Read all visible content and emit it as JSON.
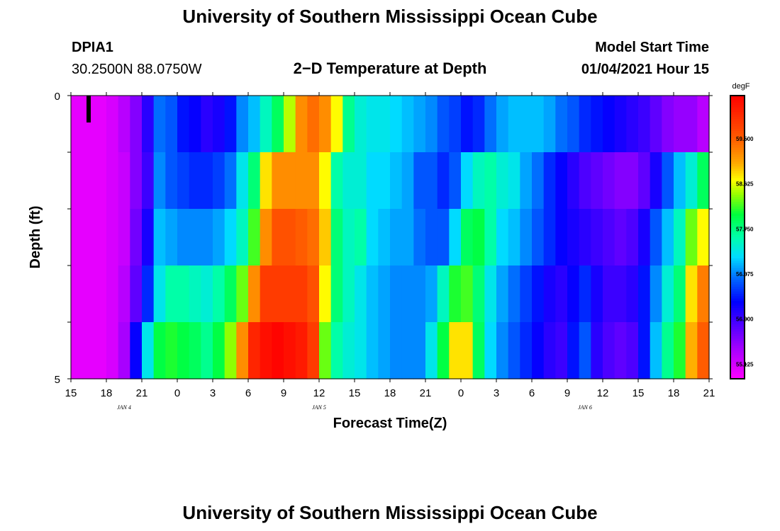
{
  "header": {
    "title": "University of Southern Mississippi Ocean Cube",
    "station_id": "DPIA1",
    "coordinates": "30.2500N 88.0750W",
    "plot_title": "2−D Temperature at Depth",
    "model_label": "Model Start Time",
    "model_time": "01/04/2021 Hour 15"
  },
  "footer": {
    "title": "University of Southern Mississippi Ocean Cube"
  },
  "chart_data": {
    "type": "heatmap",
    "title": "2−D Temperature at Depth",
    "xlabel": "Forecast Time(Z)",
    "ylabel": "Depth (ft)",
    "xlim_hours": [
      0,
      54
    ],
    "ylim": [
      0,
      5
    ],
    "y_ticks": [
      "0",
      "5"
    ],
    "x_ticks": [
      "15",
      "18",
      "21",
      "0",
      "3",
      "6",
      "9",
      "12",
      "15",
      "18",
      "21",
      "0",
      "3",
      "6",
      "9",
      "12",
      "15",
      "18",
      "21"
    ],
    "day_labels": [
      {
        "label": "JAN 4",
        "hour": 4.5
      },
      {
        "label": "JAN 5",
        "hour": 21
      },
      {
        "label": "JAN 6",
        "hour": 43.5
      }
    ],
    "colorbar": {
      "unit": "degF",
      "min": 54.84,
      "max": 60.34,
      "labels": [
        "59.500",
        "58.625",
        "57.750",
        "56.875",
        "56.000",
        "55.125"
      ],
      "label_values": [
        59.5,
        58.625,
        57.75,
        56.875,
        56.0,
        55.125
      ]
    },
    "marker_hour": 1.5,
    "depth_layers": 5,
    "columns_per_layer": 54,
    "temperature_degF": [
      [
        55.0,
        55.0,
        55.0,
        55.1,
        55.3,
        55.6,
        56.1,
        56.8,
        56.7,
        56.4,
        56.3,
        56.1,
        56.2,
        56.4,
        56.9,
        57.1,
        57.5,
        57.9,
        58.5,
        59.2,
        59.4,
        59.2,
        58.7,
        57.7,
        57.4,
        57.3,
        57.3,
        57.2,
        57.1,
        57.0,
        56.9,
        56.7,
        56.6,
        56.4,
        56.5,
        56.8,
        57.0,
        57.1,
        57.1,
        57.1,
        57.0,
        56.8,
        56.7,
        56.5,
        56.4,
        56.3,
        56.2,
        56.1,
        56.0,
        55.8,
        55.6,
        55.5,
        55.5,
        55.3
      ],
      [
        55.0,
        55.0,
        55.0,
        55.1,
        55.2,
        55.6,
        56.0,
        56.9,
        56.7,
        56.6,
        56.5,
        56.5,
        56.6,
        56.8,
        57.3,
        57.8,
        58.8,
        59.2,
        59.2,
        59.2,
        59.2,
        58.7,
        57.6,
        57.4,
        57.4,
        57.2,
        57.2,
        57.1,
        57.0,
        56.7,
        56.7,
        56.5,
        56.7,
        57.2,
        57.5,
        57.6,
        57.4,
        57.3,
        57.0,
        56.8,
        56.5,
        56.3,
        56.1,
        55.9,
        55.8,
        55.7,
        55.6,
        55.6,
        55.8,
        56.2,
        56.7,
        57.1,
        57.4,
        57.9
      ],
      [
        55.0,
        55.0,
        55.0,
        55.1,
        55.2,
        55.7,
        56.2,
        57.1,
        57.0,
        56.9,
        56.9,
        56.9,
        57.0,
        57.2,
        57.5,
        58.2,
        59.2,
        59.6,
        59.6,
        59.5,
        59.4,
        58.9,
        57.8,
        57.5,
        57.6,
        57.2,
        57.1,
        57.0,
        57.0,
        56.8,
        56.7,
        56.7,
        57.2,
        57.9,
        58.0,
        57.6,
        57.2,
        57.1,
        56.9,
        56.7,
        56.5,
        56.3,
        56.2,
        56.1,
        56.0,
        55.9,
        55.8,
        55.9,
        56.2,
        56.7,
        57.1,
        57.5,
        58.3,
        58.7
      ],
      [
        55.0,
        55.0,
        55.0,
        55.1,
        55.3,
        55.8,
        56.5,
        57.3,
        57.6,
        57.6,
        57.5,
        57.4,
        57.6,
        57.9,
        58.3,
        59.2,
        59.8,
        59.8,
        59.8,
        59.8,
        59.6,
        58.7,
        57.8,
        57.5,
        57.3,
        57.1,
        57.0,
        56.9,
        56.9,
        56.9,
        57.0,
        57.5,
        58.1,
        58.2,
        57.8,
        57.3,
        57.0,
        56.8,
        56.6,
        56.4,
        56.2,
        56.1,
        56.3,
        56.5,
        56.2,
        56.0,
        56.0,
        56.1,
        56.4,
        56.9,
        57.4,
        57.8,
        58.8,
        59.3
      ],
      [
        55.0,
        55.0,
        55.0,
        55.1,
        55.4,
        56.3,
        57.3,
        58.0,
        58.1,
        58.0,
        57.9,
        57.7,
        58.0,
        58.4,
        59.2,
        60.0,
        60.2,
        60.3,
        60.2,
        60.1,
        59.8,
        58.3,
        57.6,
        57.4,
        57.3,
        57.1,
        57.0,
        56.9,
        56.9,
        56.9,
        57.3,
        58.0,
        58.8,
        58.8,
        57.9,
        57.2,
        56.9,
        56.7,
        56.5,
        56.3,
        56.1,
        56.0,
        56.4,
        56.7,
        56.1,
        55.9,
        55.8,
        55.9,
        56.4,
        57.1,
        57.7,
        58.1,
        59.0,
        59.5
      ]
    ]
  }
}
